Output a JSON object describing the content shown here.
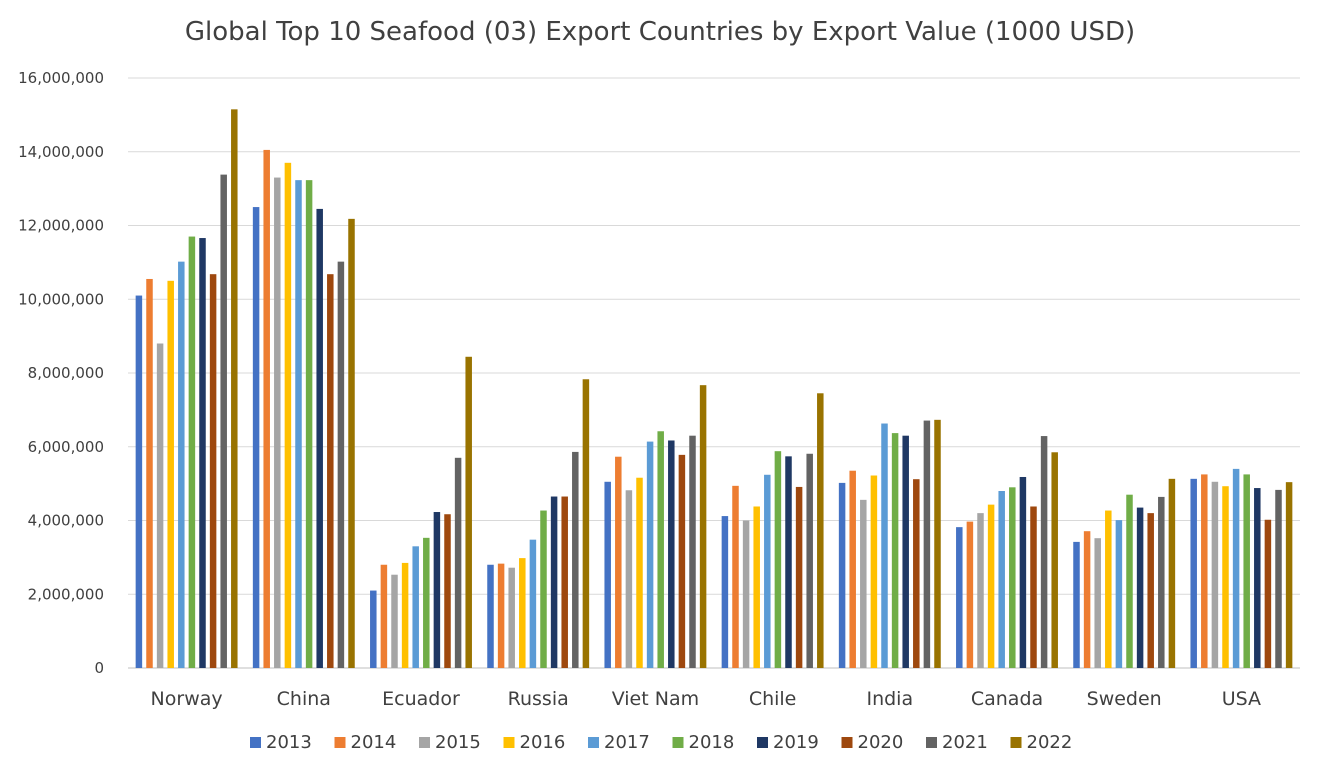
{
  "chart_data": {
    "type": "bar",
    "title": "Global Top 10 Seafood (03) Export Countries by Export Value (1000 USD)",
    "xlabel": "",
    "ylabel": "",
    "ylim": [
      0,
      16000000
    ],
    "yticks": [
      0,
      2000000,
      4000000,
      6000000,
      8000000,
      10000000,
      12000000,
      14000000,
      16000000
    ],
    "ytick_labels": [
      "0",
      "2,000,000",
      "4,000,000",
      "6,000,000",
      "8,000,000",
      "10,000,000",
      "12,000,000",
      "14,000,000",
      "16,000,000"
    ],
    "grid": true,
    "legend_position": "bottom",
    "categories": [
      "Norway",
      "China",
      "Ecuador",
      "Russia",
      "Viet Nam",
      "Chile",
      "India",
      "Canada",
      "Sweden",
      "USA"
    ],
    "series": [
      {
        "name": "2013",
        "color": "#4472c4",
        "values": [
          10100000,
          12500000,
          2100000,
          2800000,
          5050000,
          4120000,
          5020000,
          3820000,
          3420000,
          5130000
        ]
      },
      {
        "name": "2014",
        "color": "#ed7d31",
        "values": [
          10550000,
          14050000,
          2800000,
          2830000,
          5730000,
          4940000,
          5350000,
          3970000,
          3710000,
          5250000
        ]
      },
      {
        "name": "2015",
        "color": "#a5a5a5",
        "values": [
          8800000,
          13300000,
          2530000,
          2720000,
          4820000,
          4000000,
          4560000,
          4200000,
          3520000,
          5050000
        ]
      },
      {
        "name": "2016",
        "color": "#ffc000",
        "values": [
          10500000,
          13700000,
          2850000,
          2980000,
          5160000,
          4380000,
          5220000,
          4430000,
          4270000,
          4930000
        ]
      },
      {
        "name": "2017",
        "color": "#5b9bd5",
        "values": [
          11020000,
          13230000,
          3300000,
          3480000,
          6140000,
          5240000,
          6630000,
          4800000,
          4010000,
          5400000
        ]
      },
      {
        "name": "2018",
        "color": "#70ad47",
        "values": [
          11700000,
          13230000,
          3530000,
          4270000,
          6420000,
          5880000,
          6370000,
          4900000,
          4700000,
          5250000
        ]
      },
      {
        "name": "2019",
        "color": "#1f3864",
        "values": [
          11660000,
          12450000,
          4230000,
          4650000,
          6170000,
          5740000,
          6300000,
          5180000,
          4350000,
          4880000
        ]
      },
      {
        "name": "2020",
        "color": "#9e480e",
        "values": [
          10680000,
          10680000,
          4170000,
          4650000,
          5780000,
          4910000,
          5120000,
          4380000,
          4200000,
          4020000
        ]
      },
      {
        "name": "2021",
        "color": "#636363",
        "values": [
          13380000,
          11020000,
          5700000,
          5860000,
          6300000,
          5810000,
          6710000,
          6290000,
          4640000,
          4830000
        ]
      },
      {
        "name": "2022",
        "color": "#997300",
        "values": [
          15150000,
          12180000,
          8440000,
          7830000,
          7670000,
          7450000,
          6730000,
          5850000,
          5130000,
          5040000
        ]
      }
    ]
  }
}
